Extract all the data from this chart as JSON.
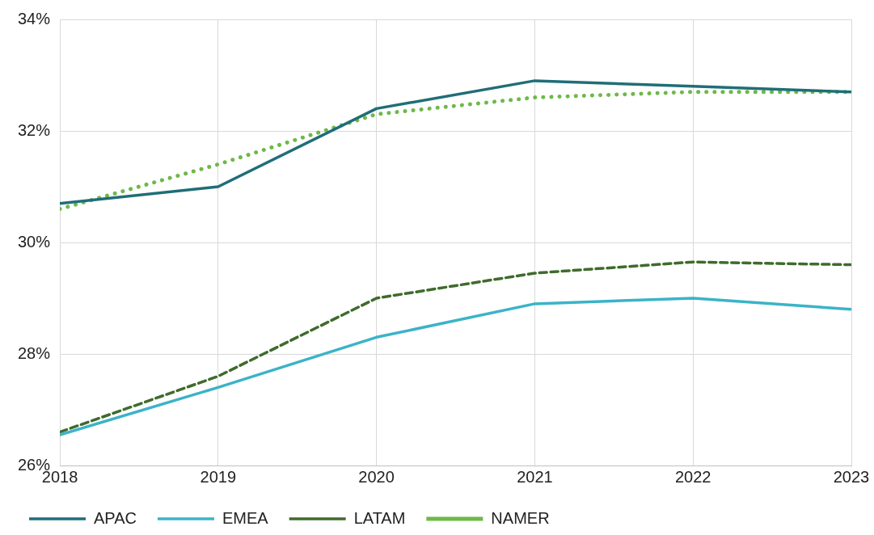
{
  "chart_data": {
    "type": "line",
    "x": [
      2018,
      2019,
      2020,
      2021,
      2022,
      2023
    ],
    "xlim": [
      2018,
      2023
    ],
    "xticks": [
      2018,
      2019,
      2020,
      2021,
      2022,
      2023
    ],
    "ylim": [
      26,
      34
    ],
    "yticks": [
      {
        "value": 26,
        "label": "26%"
      },
      {
        "value": 28,
        "label": "28%"
      },
      {
        "value": 30,
        "label": "30%"
      },
      {
        "value": 32,
        "label": "32%"
      },
      {
        "value": 34,
        "label": "34%"
      }
    ],
    "series": [
      {
        "name": "APAC",
        "color": "#1f6e78",
        "line_style": "solid",
        "values": [
          30.7,
          31.0,
          32.4,
          32.9,
          32.8,
          32.7
        ]
      },
      {
        "name": "EMEA",
        "color": "#3bb3c8",
        "line_style": "solid",
        "values": [
          26.55,
          27.4,
          28.3,
          28.9,
          29.0,
          28.8
        ]
      },
      {
        "name": "LATAM",
        "color": "#3f6b2c",
        "line_style": "dashed",
        "values": [
          26.6,
          27.6,
          29.0,
          29.45,
          29.65,
          29.6
        ]
      },
      {
        "name": "NAMER",
        "color": "#6fb84a",
        "line_style": "dotted",
        "values": [
          30.6,
          31.4,
          32.3,
          32.6,
          32.7,
          32.7
        ]
      }
    ],
    "grid": true,
    "legend": "bottom left",
    "marker": "none"
  }
}
